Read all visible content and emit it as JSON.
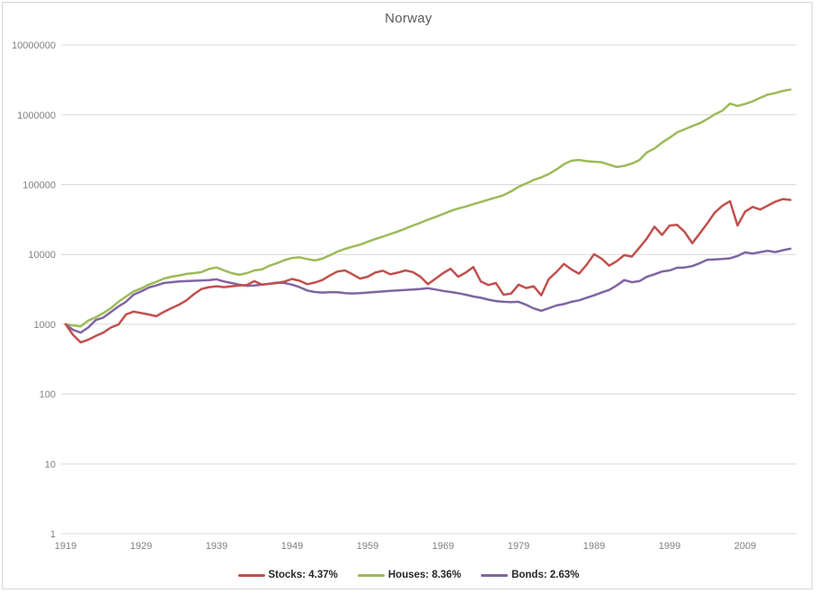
{
  "chart_data": {
    "type": "line",
    "title": "Norway",
    "legend_position": "bottom",
    "x_axis": {
      "range": [
        1919,
        2015
      ],
      "ticks": [
        1919,
        1929,
        1939,
        1949,
        1959,
        1969,
        1979,
        1989,
        1999,
        2009
      ]
    },
    "y_axis": {
      "scale": "log",
      "range": [
        1,
        10000000
      ],
      "ticks": [
        1,
        10,
        100,
        1000,
        10000,
        100000,
        1000000,
        10000000
      ],
      "tick_labels": [
        "1",
        "10",
        "100",
        "1000",
        "10000",
        "100000",
        "1000000",
        "10000000"
      ],
      "gridlines": true
    },
    "x": [
      1919,
      1920,
      1921,
      1922,
      1923,
      1924,
      1925,
      1926,
      1927,
      1928,
      1929,
      1930,
      1931,
      1932,
      1933,
      1934,
      1935,
      1936,
      1937,
      1938,
      1939,
      1940,
      1941,
      1942,
      1943,
      1944,
      1945,
      1946,
      1947,
      1948,
      1949,
      1950,
      1951,
      1952,
      1953,
      1954,
      1955,
      1956,
      1957,
      1958,
      1959,
      1960,
      1961,
      1962,
      1963,
      1964,
      1965,
      1966,
      1967,
      1968,
      1969,
      1970,
      1971,
      1972,
      1973,
      1974,
      1975,
      1976,
      1977,
      1978,
      1979,
      1980,
      1981,
      1982,
      1983,
      1984,
      1985,
      1986,
      1987,
      1988,
      1989,
      1990,
      1991,
      1992,
      1993,
      1994,
      1995,
      1996,
      1997,
      1998,
      1999,
      2000,
      2001,
      2002,
      2003,
      2004,
      2005,
      2006,
      2007,
      2008,
      2009,
      2010,
      2011,
      2012,
      2013,
      2014,
      2015
    ],
    "series": [
      {
        "name": "Stocks",
        "legend_label": "Stocks: 4.37%",
        "annualized_return": "4.37%",
        "color": "#C0504D",
        "values": [
          1000,
          700,
          550,
          600,
          680,
          760,
          900,
          990,
          1380,
          1520,
          1450,
          1380,
          1300,
          1500,
          1700,
          1900,
          2200,
          2700,
          3200,
          3400,
          3500,
          3400,
          3500,
          3600,
          3650,
          4150,
          3700,
          3800,
          3900,
          4100,
          4450,
          4200,
          3750,
          3950,
          4300,
          5000,
          5700,
          5900,
          5200,
          4500,
          4800,
          5500,
          5850,
          5200,
          5500,
          5900,
          5600,
          4800,
          3750,
          4500,
          5400,
          6250,
          4800,
          5500,
          6600,
          4100,
          3650,
          3900,
          2650,
          2750,
          3700,
          3300,
          3500,
          2600,
          4450,
          5600,
          7300,
          6100,
          5300,
          7100,
          10100,
          8700,
          6900,
          8000,
          9800,
          9300,
          12500,
          17000,
          25000,
          19000,
          26000,
          26500,
          21000,
          14500,
          20000,
          28000,
          40000,
          50000,
          58000,
          26000,
          41000,
          48000,
          44000,
          50000,
          57000,
          62000,
          60500
        ]
      },
      {
        "name": "Houses",
        "legend_label": "Houses: 8.36%",
        "annualized_return": "8.36%",
        "color": "#9BBB59",
        "values": [
          1000,
          960,
          930,
          1130,
          1260,
          1450,
          1700,
          2100,
          2500,
          2950,
          3250,
          3700,
          4050,
          4500,
          4800,
          5000,
          5250,
          5400,
          5600,
          6200,
          6500,
          5900,
          5400,
          5100,
          5400,
          5900,
          6100,
          6900,
          7500,
          8300,
          8900,
          9100,
          8600,
          8200,
          8700,
          9700,
          11000,
          12000,
          12900,
          13800,
          15200,
          16600,
          18000,
          19600,
          21300,
          23500,
          26000,
          28500,
          31500,
          34500,
          38000,
          42000,
          45500,
          48500,
          52500,
          56500,
          61000,
          65500,
          70500,
          80000,
          93000,
          104000,
          117000,
          127000,
          142000,
          165000,
          196000,
          220000,
          226000,
          217000,
          213000,
          209000,
          193000,
          179000,
          186000,
          200000,
          225000,
          290000,
          330000,
          400000,
          470000,
          560000,
          620000,
          690000,
          760000,
          870000,
          1020000,
          1150000,
          1450000,
          1340000,
          1430000,
          1560000,
          1750000,
          1950000,
          2050000,
          2200000,
          2300000
        ]
      },
      {
        "name": "Bonds",
        "legend_label": "Bonds: 2.63%",
        "annualized_return": "2.63%",
        "color": "#8064A2",
        "values": [
          1000,
          830,
          760,
          900,
          1150,
          1250,
          1500,
          1800,
          2100,
          2650,
          2950,
          3350,
          3600,
          3900,
          4000,
          4100,
          4150,
          4200,
          4250,
          4300,
          4400,
          4100,
          3900,
          3700,
          3550,
          3600,
          3700,
          3800,
          3950,
          3900,
          3700,
          3400,
          3050,
          2900,
          2850,
          2870,
          2870,
          2800,
          2760,
          2800,
          2850,
          2900,
          2950,
          3000,
          3050,
          3100,
          3150,
          3200,
          3280,
          3150,
          3000,
          2900,
          2790,
          2650,
          2500,
          2400,
          2250,
          2150,
          2100,
          2080,
          2100,
          1900,
          1690,
          1560,
          1700,
          1860,
          1950,
          2100,
          2200,
          2400,
          2600,
          2850,
          3100,
          3600,
          4300,
          4000,
          4150,
          4800,
          5200,
          5700,
          5900,
          6450,
          6500,
          6800,
          7500,
          8400,
          8500,
          8600,
          8800,
          9500,
          10700,
          10300,
          10800,
          11300,
          10800,
          11500,
          12100
        ]
      }
    ]
  },
  "colors": {
    "background": "#FFFFFF",
    "border": "#D6D6D6",
    "gridline": "#D9D9D9",
    "axis_text": "#808080",
    "title_text": "#595959",
    "legend_text": "#262626"
  }
}
